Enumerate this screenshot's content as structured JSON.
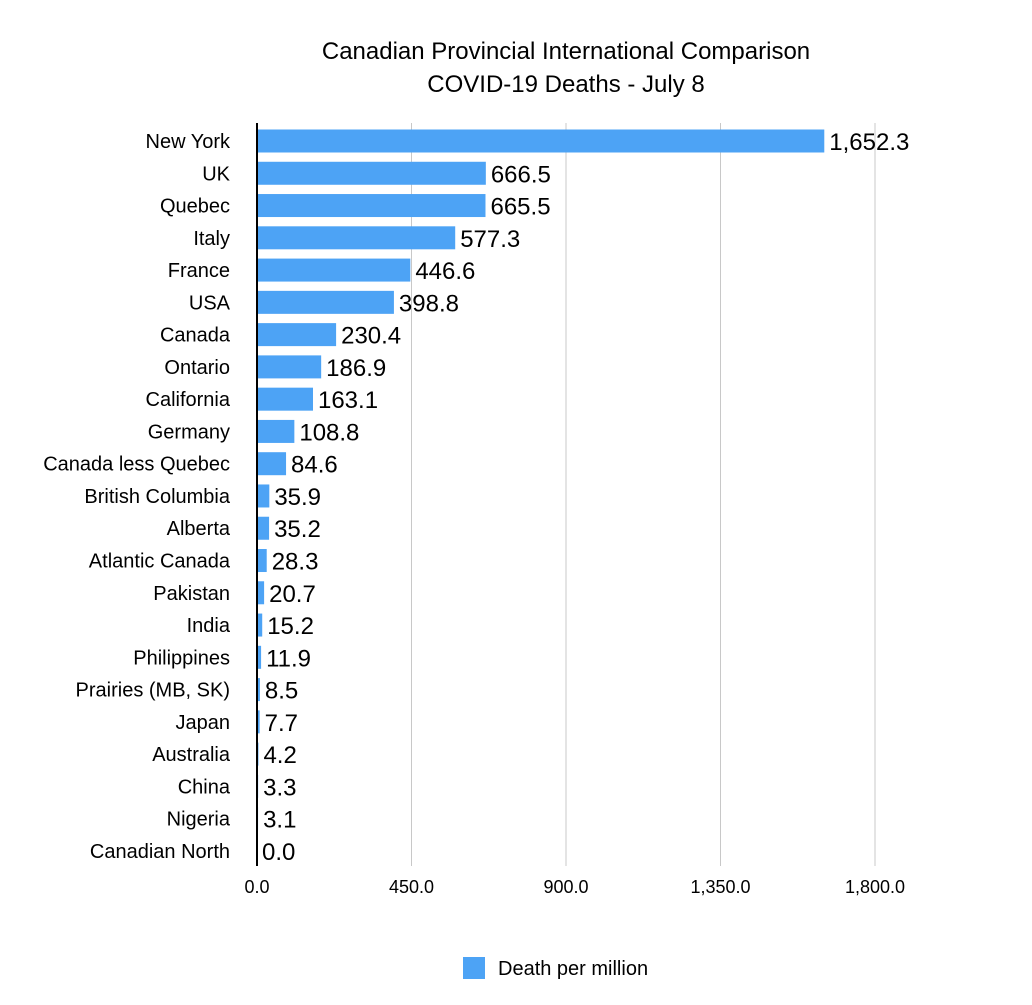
{
  "chart_data": {
    "type": "bar",
    "orientation": "horizontal",
    "title": [
      "Canadian Provincial International Comparison",
      "COVID-19 Deaths - July 8"
    ],
    "categories": [
      "New York",
      "UK",
      "Quebec",
      "Italy",
      "France",
      "USA",
      "Canada",
      "Ontario",
      "California",
      "Germany",
      "Canada less Quebec",
      "British Columbia",
      "Alberta",
      "Atlantic Canada",
      "Pakistan",
      "India",
      "Philippines",
      "Prairies (MB, SK)",
      "Japan",
      "Australia",
      "China",
      "Nigeria",
      "Canadian North"
    ],
    "series": [
      {
        "name": "Death per million",
        "color": "#4DA3F5",
        "values": [
          1652.3,
          666.5,
          665.5,
          577.3,
          446.6,
          398.8,
          230.4,
          186.9,
          163.1,
          108.8,
          84.6,
          35.9,
          35.2,
          28.3,
          20.7,
          15.2,
          11.9,
          8.5,
          7.7,
          4.2,
          3.3,
          3.1,
          0.0
        ],
        "data_labels": [
          "1,652.3",
          "666.5",
          "665.5",
          "577.3",
          "446.6",
          "398.8",
          "230.4",
          "186.9",
          "163.1",
          "108.8",
          "84.6",
          "35.9",
          "35.2",
          "28.3",
          "20.7",
          "15.2",
          "11.9",
          "8.5",
          "7.7",
          "4.2",
          "3.3",
          "3.1",
          "0.0"
        ]
      }
    ],
    "xlim": [
      0,
      1800
    ],
    "x_ticks": [
      0,
      450,
      900,
      1350,
      1800
    ],
    "x_tick_labels": [
      "0.0",
      "450.0",
      "900.0",
      "1,350.0",
      "1,800.0"
    ],
    "grid": "vertical",
    "legend": "bottom"
  }
}
